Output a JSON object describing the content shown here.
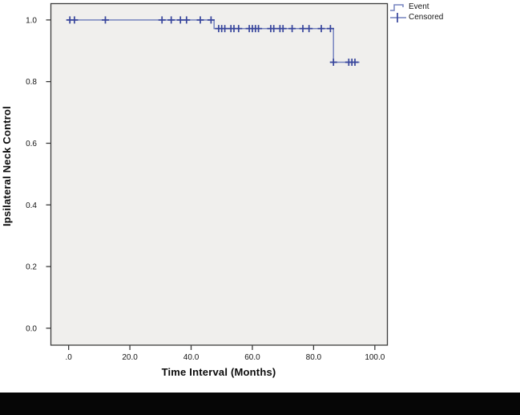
{
  "figure": {
    "y_axis_title": "Ipsilateral Neck Control",
    "x_axis_title": "Time Interval (Months)"
  },
  "legend": {
    "items": [
      {
        "label": "Event",
        "symbol": "step-line-icon"
      },
      {
        "label": "Censored",
        "symbol": "plus-icon"
      }
    ]
  },
  "chart_data": {
    "type": "line",
    "subtype": "kaplan-meier-step",
    "title": "",
    "xlabel": "Time Interval (Months)",
    "ylabel": "Ipsilateral Neck Control",
    "grid": false,
    "legend_position": "top-right-outside",
    "xlim": [
      -5.8,
      104.1
    ],
    "ylim": [
      -0.055,
      1.053
    ],
    "x_ticks": {
      "labels": [
        ".0",
        "20.0",
        "40.0",
        "60.0",
        "80.0",
        "100.0"
      ],
      "values": [
        0,
        20,
        40,
        60,
        80,
        100
      ]
    },
    "y_ticks": {
      "labels": [
        "0.0",
        "0.2",
        "0.4",
        "0.6",
        "0.8",
        "1.0"
      ],
      "values": [
        0,
        0.2,
        0.4,
        0.6,
        0.8,
        1.0
      ]
    },
    "series": [
      {
        "name": "Event",
        "draw": "step",
        "points": [
          [
            0,
            1.0
          ],
          [
            47.5,
            1.0
          ],
          [
            47.5,
            0.972
          ],
          [
            86.5,
            0.972
          ],
          [
            86.5,
            0.863
          ],
          [
            95,
            0.863
          ]
        ]
      },
      {
        "name": "Censored",
        "draw": "plus-marker",
        "points": [
          [
            0.4,
            1.0
          ],
          [
            1.9,
            1.0
          ],
          [
            12,
            1.0
          ],
          [
            30.5,
            1.0
          ],
          [
            33.5,
            1.0
          ],
          [
            36.5,
            1.0
          ],
          [
            38.5,
            1.0
          ],
          [
            43,
            1.0
          ],
          [
            46.5,
            1.0
          ],
          [
            49,
            0.972
          ],
          [
            50,
            0.972
          ],
          [
            51,
            0.972
          ],
          [
            53,
            0.972
          ],
          [
            54,
            0.972
          ],
          [
            55.5,
            0.972
          ],
          [
            59,
            0.972
          ],
          [
            60,
            0.972
          ],
          [
            61,
            0.972
          ],
          [
            62,
            0.972
          ],
          [
            66,
            0.972
          ],
          [
            67,
            0.972
          ],
          [
            69,
            0.972
          ],
          [
            70,
            0.972
          ],
          [
            73,
            0.972
          ],
          [
            76.5,
            0.972
          ],
          [
            78.5,
            0.972
          ],
          [
            82.5,
            0.972
          ],
          [
            85.5,
            0.972
          ],
          [
            86.5,
            0.863
          ],
          [
            91.5,
            0.863
          ],
          [
            92.5,
            0.863
          ],
          [
            93.5,
            0.863
          ]
        ]
      }
    ],
    "colors": {
      "line": "#7583bf",
      "censor": "#37459c",
      "plot_bg": "#f0efed",
      "frame": "#3c3c3c",
      "text": "#141414",
      "bottom_bar": "#060606"
    }
  }
}
